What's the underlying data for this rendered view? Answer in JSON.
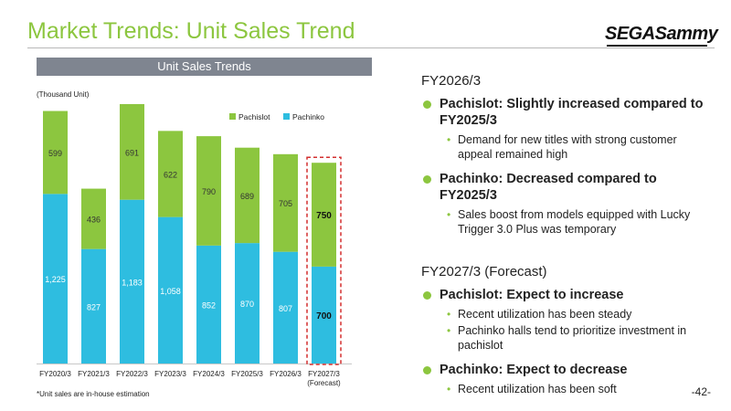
{
  "title": "Market Trends: Unit Sales Trend",
  "logo_text": "SEGASammy",
  "banner": "Unit Sales Trends",
  "unit_label": "(Thousand Unit)",
  "footnote": "*Unit sales are in-house estimation",
  "page_number": "-42-",
  "colors": {
    "accent_green": "#8cc63f",
    "pachinko_blue": "#2ebde0",
    "forecast_border": "#d32f2f",
    "banner_gray": "#7f8590"
  },
  "chart_data": {
    "type": "bar",
    "stacked": true,
    "categories": [
      "FY2020/3",
      "FY2021/3",
      "FY2022/3",
      "FY2023/3",
      "FY2024/3",
      "FY2025/3",
      "FY2026/3",
      "FY2027/3\n(Forecast)"
    ],
    "series": [
      {
        "name": "Pachinko",
        "color": "#2ebde0",
        "values": [
          1225,
          827,
          1183,
          1058,
          852,
          870,
          807,
          700
        ]
      },
      {
        "name": "Pachislot",
        "color": "#8cc63f",
        "values": [
          599,
          436,
          691,
          622,
          790,
          689,
          705,
          750
        ]
      }
    ],
    "forecast_index": 7,
    "legend": [
      "Pachislot",
      "Pachinko"
    ],
    "legend_position": "top-right",
    "grid": false,
    "ylim": [
      0,
      1900
    ]
  },
  "right_panel": {
    "section1": {
      "title": "FY2026/3",
      "points": [
        {
          "label": "Pachislot: Slightly increased compared to FY2025/3",
          "subs": [
            "Demand for new titles with strong customer appeal remained high"
          ]
        },
        {
          "label": "Pachinko: Decreased compared to FY2025/3",
          "subs": [
            "Sales boost from models equipped with Lucky Trigger 3.0 Plus was temporary"
          ]
        }
      ]
    },
    "section2": {
      "title": "FY2027/3 (Forecast)",
      "points": [
        {
          "label": "Pachislot: Expect to increase",
          "subs": [
            "Recent utilization has been steady",
            "Pachinko halls tend to prioritize investment in pachislot"
          ]
        },
        {
          "label": "Pachinko: Expect to decrease",
          "subs": [
            "Recent utilization has been soft"
          ]
        }
      ]
    }
  }
}
